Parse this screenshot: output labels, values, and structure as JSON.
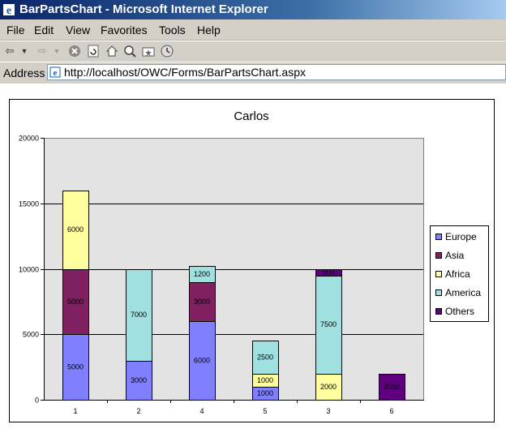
{
  "window": {
    "title": "BarPartsChart - Microsoft Internet Explorer"
  },
  "menu": [
    "File",
    "Edit",
    "View",
    "Favorites",
    "Tools",
    "Help"
  ],
  "address": {
    "label": "Address",
    "url": "http://localhost/OWC/Forms/BarPartsChart.aspx"
  },
  "icons": [
    "back-icon",
    "forward-icon",
    "stop-icon",
    "refresh-icon",
    "home-icon",
    "search-icon",
    "favorites-icon",
    "history-icon"
  ],
  "chart_data": {
    "type": "bar",
    "stacked": true,
    "title": "Carlos",
    "categories": [
      "1",
      "2",
      "4",
      "5",
      "3",
      "6"
    ],
    "ylim": [
      0,
      20000
    ],
    "yticks": [
      "0",
      "5000",
      "10000",
      "15000",
      "20000"
    ],
    "grid": true,
    "legend_position": "right",
    "series": [
      {
        "name": "Europe",
        "color": "#8080ff",
        "values": [
          5000,
          3000,
          6000,
          1000,
          0,
          0
        ],
        "labels": [
          "5000",
          "3000",
          "6000",
          "1000",
          "",
          ""
        ]
      },
      {
        "name": "Asia",
        "color": "#802060",
        "values": [
          5000,
          0,
          3000,
          0,
          0,
          0
        ],
        "labels": [
          "5000",
          "",
          "3000",
          "",
          "",
          ""
        ]
      },
      {
        "name": "Africa",
        "color": "#ffffa0",
        "values": [
          6000,
          0,
          0,
          1000,
          2000,
          0
        ],
        "labels": [
          "6000",
          "",
          "",
          "1000",
          "2000",
          ""
        ]
      },
      {
        "name": "America",
        "color": "#a0e0e0",
        "values": [
          0,
          7000,
          1200,
          2500,
          7500,
          0
        ],
        "labels": [
          "",
          "7000",
          "1200",
          "2500",
          "7500",
          ""
        ]
      },
      {
        "name": "Others",
        "color": "#600080",
        "values": [
          0,
          0,
          0,
          0,
          500,
          2000
        ],
        "labels": [
          "",
          "",
          "",
          "",
          "500",
          "2000"
        ]
      }
    ]
  }
}
